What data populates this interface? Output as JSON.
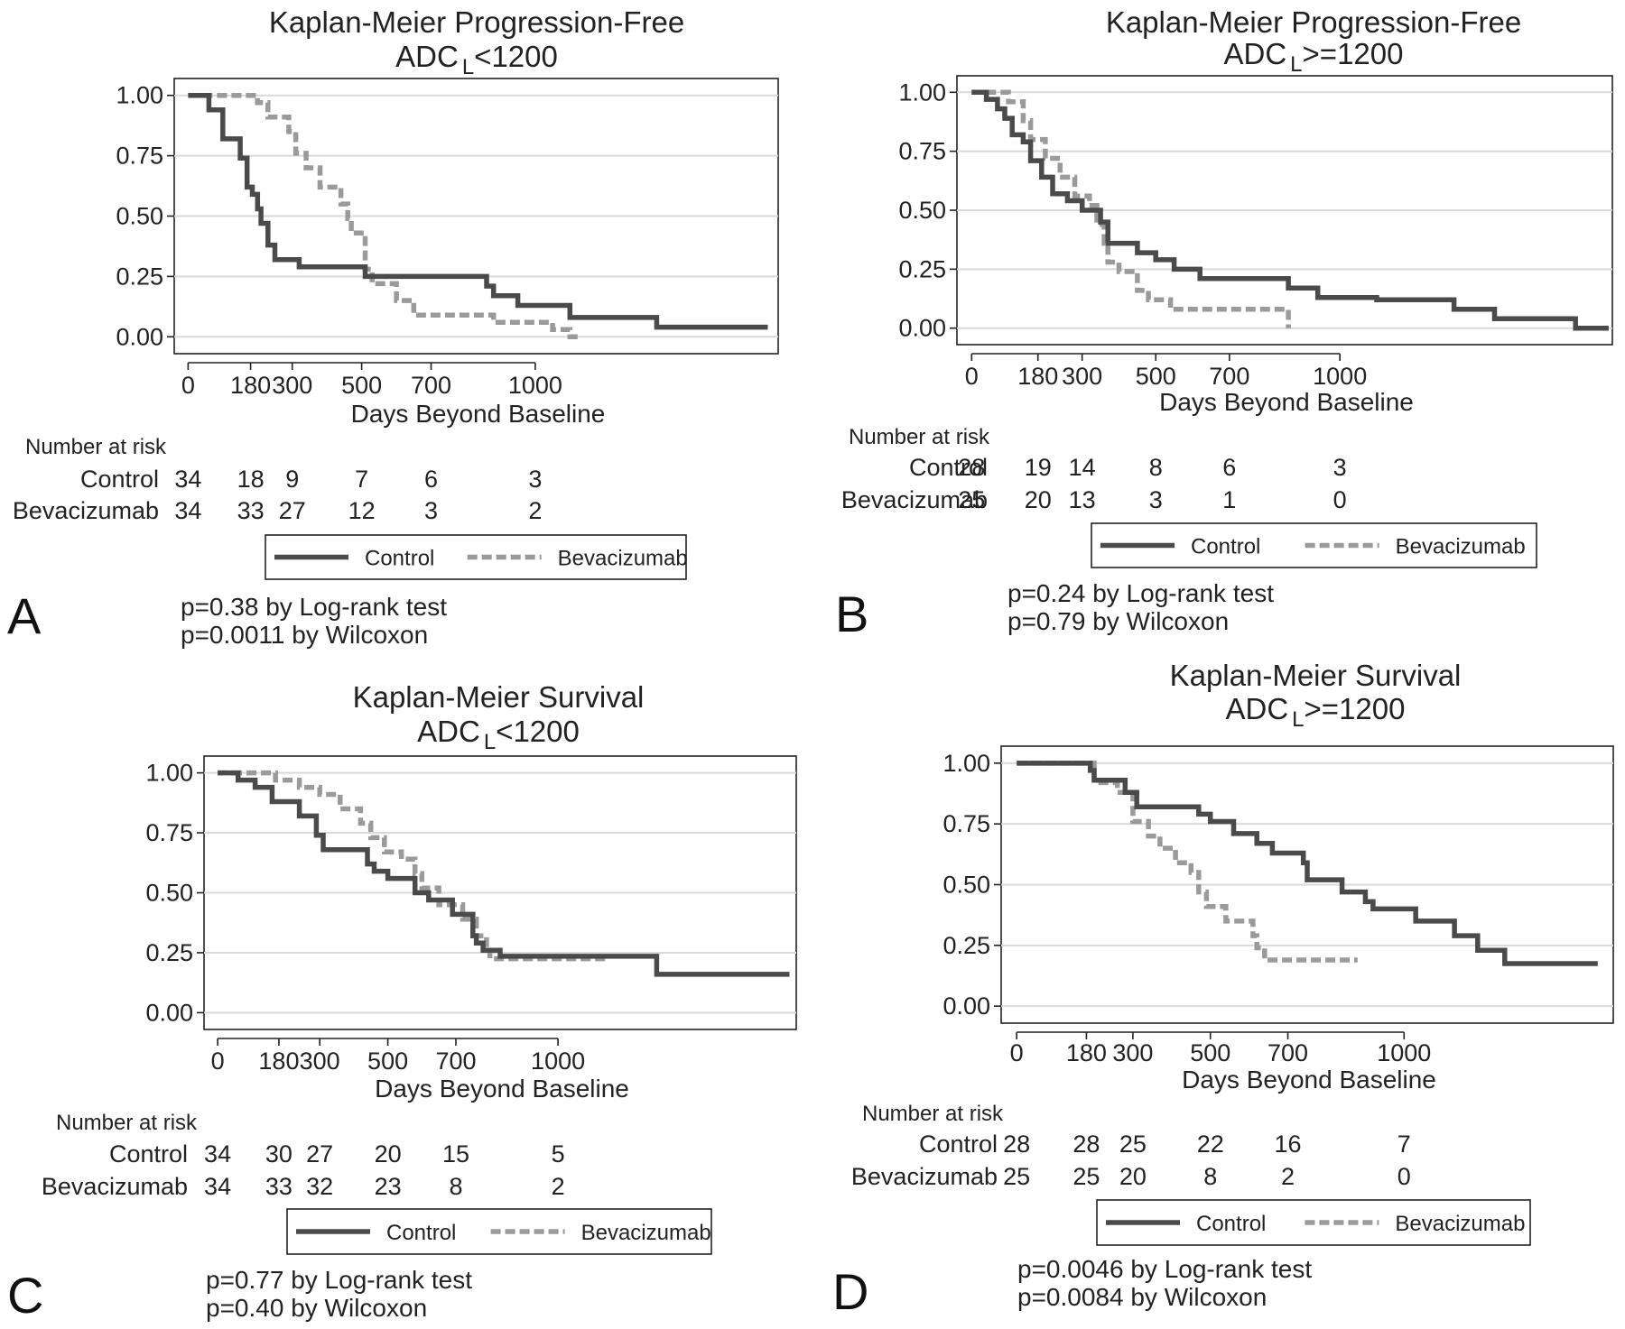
{
  "chart_data": [
    {
      "type": "line",
      "panel_letter": "A",
      "title": "Kaplan-Meier Progression-Free",
      "subtitle": {
        "prefix": "ADC",
        "subscript": "L",
        "suffix": "<1200"
      },
      "xlabel": "Days Beyond Baseline",
      "ylabel": "",
      "xlim": [
        -40,
        1700
      ],
      "ylim": [
        -0.07,
        1.07
      ],
      "x_ticks": [
        0,
        180,
        300,
        500,
        700,
        1000
      ],
      "y_ticks": [
        "1.00",
        "0.75",
        "0.50",
        "0.25",
        "0.00"
      ],
      "y_tick_values": [
        1.0,
        0.75,
        0.5,
        0.25,
        0.0
      ],
      "grid": true,
      "legend_position": "below",
      "series": [
        {
          "name": "Control",
          "color": "#4a4a4a",
          "dash": false,
          "x": [
            0,
            60,
            100,
            150,
            170,
            185,
            200,
            210,
            230,
            250,
            320,
            510,
            860,
            880,
            950,
            1100,
            1350,
            1670
          ],
          "y": [
            1.0,
            0.94,
            0.82,
            0.74,
            0.62,
            0.59,
            0.53,
            0.47,
            0.38,
            0.32,
            0.29,
            0.25,
            0.21,
            0.17,
            0.13,
            0.08,
            0.04,
            0.04
          ]
        },
        {
          "name": "Bevacizumab",
          "color": "#9a9a9a",
          "dash": true,
          "x": [
            0,
            185,
            200,
            230,
            290,
            310,
            340,
            380,
            440,
            460,
            470,
            510,
            530,
            600,
            650,
            700,
            880,
            1050,
            1100,
            1130
          ],
          "y": [
            1.0,
            1.0,
            0.97,
            0.91,
            0.85,
            0.76,
            0.7,
            0.62,
            0.55,
            0.49,
            0.43,
            0.28,
            0.22,
            0.15,
            0.09,
            0.09,
            0.06,
            0.03,
            0.0,
            0.0
          ]
        }
      ],
      "number_at_risk": {
        "header": "Number at risk",
        "x": [
          0,
          180,
          300,
          500,
          700,
          1000
        ],
        "rows": [
          {
            "label": "Control",
            "values": [
              "34",
              "18",
              "9",
              "7",
              "6",
              "3"
            ]
          },
          {
            "label": "Bevacizumab",
            "values": [
              "34",
              "33",
              "27",
              "12",
              "3",
              "2"
            ]
          }
        ]
      },
      "p_values": [
        "p=0.38 by Log-rank test",
        "p=0.0011 by Wilcoxon"
      ]
    },
    {
      "type": "line",
      "panel_letter": "B",
      "title": "Kaplan-Meier Progression-Free",
      "subtitle": {
        "prefix": "ADC",
        "subscript": "L",
        "suffix": ">=1200"
      },
      "xlabel": "Days Beyond Baseline",
      "ylabel": "",
      "xlim": [
        -40,
        1740
      ],
      "ylim": [
        -0.07,
        1.07
      ],
      "x_ticks": [
        0,
        180,
        300,
        500,
        700,
        1000
      ],
      "y_ticks": [
        "1.00",
        "0.75",
        "0.50",
        "0.25",
        "0.00"
      ],
      "y_tick_values": [
        1.0,
        0.75,
        0.5,
        0.25,
        0.0
      ],
      "grid": true,
      "legend_position": "below",
      "series": [
        {
          "name": "Control",
          "color": "#4a4a4a",
          "dash": false,
          "x": [
            0,
            40,
            70,
            90,
            110,
            140,
            160,
            190,
            220,
            260,
            300,
            350,
            370,
            450,
            500,
            550,
            620,
            860,
            940,
            1100,
            1310,
            1420,
            1640,
            1730
          ],
          "y": [
            1.0,
            0.97,
            0.93,
            0.89,
            0.82,
            0.79,
            0.71,
            0.64,
            0.57,
            0.54,
            0.5,
            0.45,
            0.36,
            0.32,
            0.29,
            0.25,
            0.21,
            0.17,
            0.13,
            0.12,
            0.08,
            0.04,
            0.0,
            0.0
          ]
        },
        {
          "name": "Bevacizumab",
          "color": "#9a9a9a",
          "dash": true,
          "x": [
            0,
            100,
            140,
            160,
            200,
            240,
            280,
            320,
            340,
            360,
            370,
            400,
            450,
            480,
            540,
            560,
            850,
            860
          ],
          "y": [
            1.0,
            0.96,
            0.88,
            0.8,
            0.72,
            0.64,
            0.56,
            0.52,
            0.44,
            0.36,
            0.28,
            0.24,
            0.16,
            0.12,
            0.08,
            0.08,
            0.08,
            0.0
          ]
        }
      ],
      "number_at_risk": {
        "header": "Number at risk",
        "x": [
          0,
          180,
          300,
          500,
          700,
          1000
        ],
        "rows": [
          {
            "label": "Control",
            "values": [
              "28",
              "19",
              "14",
              "8",
              "6",
              "3"
            ]
          },
          {
            "label": "Bevacizumab",
            "values": [
              "25",
              "20",
              "13",
              "3",
              "1",
              "0"
            ]
          }
        ]
      },
      "p_values": [
        "p=0.24 by Log-rank test",
        "p=0.79 by Wilcoxon"
      ]
    },
    {
      "type": "line",
      "panel_letter": "C",
      "title": "Kaplan-Meier Survival",
      "subtitle": {
        "prefix": "ADC",
        "subscript": "L",
        "suffix": "<1200"
      },
      "xlabel": "Days Beyond Baseline",
      "ylabel": "",
      "xlim": [
        -40,
        1700
      ],
      "ylim": [
        -0.07,
        1.07
      ],
      "x_ticks": [
        0,
        180,
        300,
        500,
        700,
        1000
      ],
      "y_ticks": [
        "1.00",
        "0.75",
        "0.50",
        "0.25",
        "0.00"
      ],
      "y_tick_values": [
        1.0,
        0.75,
        0.5,
        0.25,
        0.0
      ],
      "grid": true,
      "legend_position": "below",
      "series": [
        {
          "name": "Control",
          "color": "#4a4a4a",
          "dash": false,
          "x": [
            0,
            60,
            110,
            160,
            240,
            290,
            310,
            440,
            460,
            500,
            580,
            620,
            690,
            750,
            760,
            780,
            830,
            1290,
            1680
          ],
          "y": [
            1.0,
            0.97,
            0.94,
            0.88,
            0.82,
            0.74,
            0.68,
            0.62,
            0.59,
            0.56,
            0.5,
            0.47,
            0.41,
            0.32,
            0.29,
            0.26,
            0.235,
            0.16,
            0.16
          ]
        },
        {
          "name": "Bevacizumab",
          "color": "#9a9a9a",
          "dash": true,
          "x": [
            0,
            90,
            170,
            240,
            300,
            360,
            420,
            450,
            490,
            540,
            580,
            600,
            650,
            720,
            760,
            790,
            800,
            1150
          ],
          "y": [
            1.0,
            1.0,
            0.97,
            0.94,
            0.91,
            0.85,
            0.79,
            0.73,
            0.67,
            0.64,
            0.58,
            0.52,
            0.45,
            0.39,
            0.32,
            0.26,
            0.225,
            0.225
          ]
        }
      ],
      "number_at_risk": {
        "header": "Number at risk",
        "x": [
          0,
          180,
          300,
          500,
          700,
          1000
        ],
        "rows": [
          {
            "label": "Control",
            "values": [
              "34",
              "30",
              "27",
              "20",
              "15",
              "5"
            ]
          },
          {
            "label": "Bevacizumab",
            "values": [
              "34",
              "33",
              "32",
              "23",
              "8",
              "2"
            ]
          }
        ]
      },
      "p_values": [
        "p=0.77 by Log-rank test",
        "p=0.40 by Wilcoxon"
      ]
    },
    {
      "type": "line",
      "panel_letter": "D",
      "title": "Kaplan-Meier Survival",
      "subtitle": {
        "prefix": "ADC",
        "subscript": "L",
        "suffix": ">=1200"
      },
      "xlabel": "Days Beyond Baseline",
      "ylabel": "",
      "xlim": [
        -40,
        1540
      ],
      "ylim": [
        -0.07,
        1.07
      ],
      "x_ticks": [
        0,
        180,
        300,
        500,
        700,
        1000
      ],
      "y_ticks": [
        "1.00",
        "0.75",
        "0.50",
        "0.25",
        "0.00"
      ],
      "y_tick_values": [
        1.0,
        0.75,
        0.5,
        0.25,
        0.0
      ],
      "grid": true,
      "legend_position": "below",
      "series": [
        {
          "name": "Control",
          "color": "#4a4a4a",
          "dash": false,
          "x": [
            0,
            190,
            200,
            280,
            310,
            470,
            500,
            560,
            620,
            660,
            740,
            750,
            840,
            900,
            920,
            950,
            1030,
            1130,
            1190,
            1260,
            1440,
            1500
          ],
          "y": [
            1.0,
            0.97,
            0.93,
            0.88,
            0.82,
            0.79,
            0.76,
            0.71,
            0.67,
            0.63,
            0.59,
            0.52,
            0.47,
            0.43,
            0.4,
            0.4,
            0.35,
            0.29,
            0.23,
            0.175,
            0.175,
            0.175
          ]
        },
        {
          "name": "Bevacizumab",
          "color": "#9a9a9a",
          "dash": true,
          "x": [
            0,
            180,
            200,
            260,
            300,
            340,
            370,
            410,
            450,
            470,
            490,
            540,
            600,
            610,
            620,
            640,
            880
          ],
          "y": [
            1.0,
            1.0,
            0.92,
            0.88,
            0.76,
            0.7,
            0.65,
            0.59,
            0.55,
            0.47,
            0.41,
            0.35,
            0.35,
            0.29,
            0.24,
            0.19,
            0.19
          ]
        }
      ],
      "number_at_risk": {
        "header": "Number at risk",
        "x": [
          0,
          180,
          300,
          500,
          700,
          1000
        ],
        "rows": [
          {
            "label": "Control",
            "values": [
              "28",
              "28",
              "25",
              "22",
              "16",
              "7"
            ]
          },
          {
            "label": "Bevacizumab",
            "values": [
              "25",
              "25",
              "20",
              "8",
              "2",
              "0"
            ]
          }
        ]
      },
      "p_values": [
        "p=0.0046 by Log-rank test",
        "p=0.0084 by Wilcoxon"
      ]
    }
  ]
}
